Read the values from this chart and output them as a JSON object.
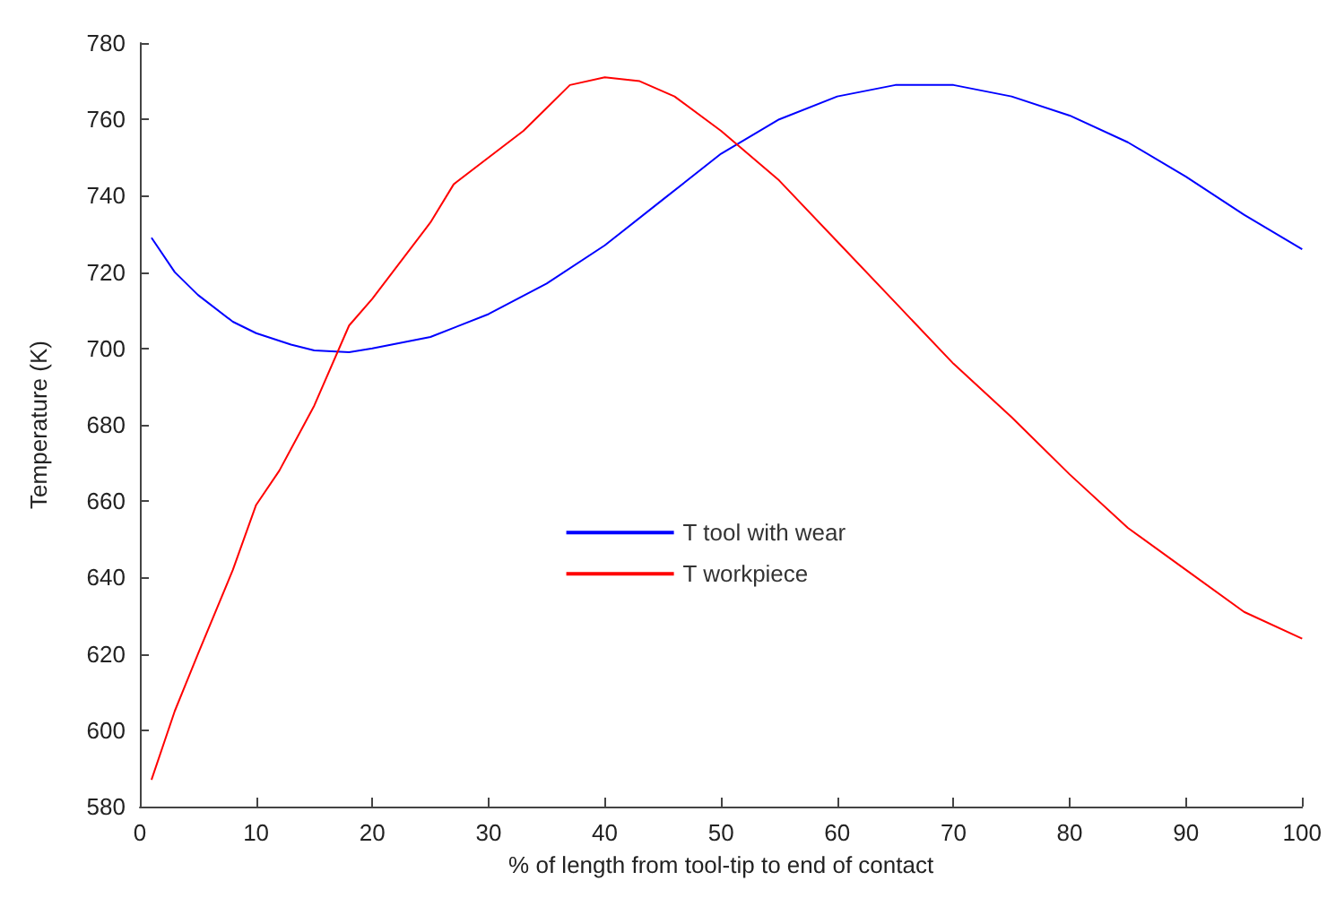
{
  "chart_data": {
    "type": "line",
    "xlabel": "% of length from tool-tip to end of contact",
    "ylabel": "Temperature (K)",
    "xlim": [
      0,
      100
    ],
    "xticks": [
      0,
      10,
      20,
      30,
      40,
      50,
      60,
      70,
      80,
      90,
      100
    ],
    "ylim": [
      580,
      780
    ],
    "yticks": [
      580,
      600,
      620,
      640,
      660,
      680,
      700,
      720,
      740,
      760,
      780
    ],
    "grid": false,
    "legend": "center",
    "marker": "none",
    "line_style": "solid",
    "series": [
      {
        "name": "T tool with wear",
        "color": "#0000ff",
        "x": [
          1,
          3,
          5,
          8,
          10,
          13,
          15,
          18,
          20,
          25,
          30,
          35,
          40,
          45,
          50,
          55,
          60,
          65,
          70,
          75,
          80,
          85,
          90,
          95,
          100
        ],
        "values": [
          729,
          720,
          714,
          707,
          704,
          701,
          699.5,
          699,
          700,
          703,
          709,
          717,
          727,
          739,
          751,
          760,
          766,
          769,
          769,
          766,
          761,
          754,
          745,
          735,
          726
        ]
      },
      {
        "name": "T workpiece",
        "color": "#ff0000",
        "x": [
          1,
          3,
          5,
          8,
          10,
          12,
          15,
          18,
          20,
          25,
          27,
          30,
          33,
          35,
          37,
          40,
          43,
          46,
          50,
          55,
          60,
          65,
          70,
          75,
          80,
          85,
          90,
          95,
          100
        ],
        "values": [
          587,
          605,
          620,
          642,
          659,
          668,
          685,
          706,
          713,
          733,
          743,
          750,
          757,
          763,
          769,
          771,
          770,
          766,
          757,
          744,
          728,
          712,
          696,
          682,
          667,
          653,
          642,
          631,
          624
        ]
      }
    ]
  }
}
